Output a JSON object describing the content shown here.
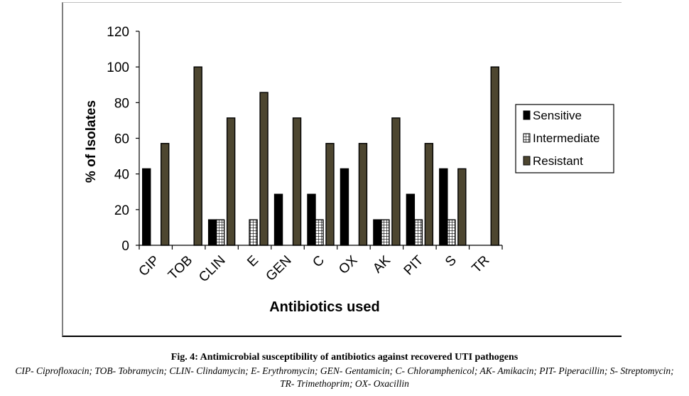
{
  "chart_data": {
    "type": "bar",
    "title": "",
    "xlabel": "Antibiotics used",
    "ylabel": "% of Isolates",
    "ylim": [
      0,
      120
    ],
    "yticks": [
      0,
      20,
      40,
      60,
      80,
      100,
      120
    ],
    "grid": false,
    "legend_position": "right",
    "categories": [
      "CIP",
      "TOB",
      "CLIN",
      "E",
      "GEN",
      "C",
      "OX",
      "AK",
      "PIT",
      "S",
      "TR"
    ],
    "series": [
      {
        "name": "Sensitive",
        "color": "#000000",
        "pattern": "solid",
        "values": [
          42.9,
          0,
          14.3,
          0,
          28.6,
          28.6,
          42.9,
          14.3,
          28.6,
          42.9,
          0
        ]
      },
      {
        "name": "Intermediate",
        "color": "#ffffff",
        "pattern": "grid",
        "values": [
          0,
          0,
          14.3,
          14.3,
          0,
          14.3,
          0,
          14.3,
          14.3,
          14.3,
          0
        ]
      },
      {
        "name": "Resistant",
        "color": "#4d4630",
        "pattern": "solid",
        "values": [
          57.1,
          100,
          71.4,
          85.7,
          71.4,
          57.1,
          57.1,
          71.4,
          57.1,
          42.9,
          100
        ]
      }
    ]
  },
  "caption": {
    "title": "Fig. 4: Antimicrobial susceptibility of antibiotics against recovered UTI pathogens",
    "body": "CIP- Ciprofloxacin; TOB- Tobramycin; CLIN- Clindamycin; E- Erythromycin; GEN- Gentamicin; C- Chloramphenicol; AK- Amikacin; PIT- Piperacillin; S- Streptomycin; TR- Trimethoprim; OX- Oxacillin"
  }
}
